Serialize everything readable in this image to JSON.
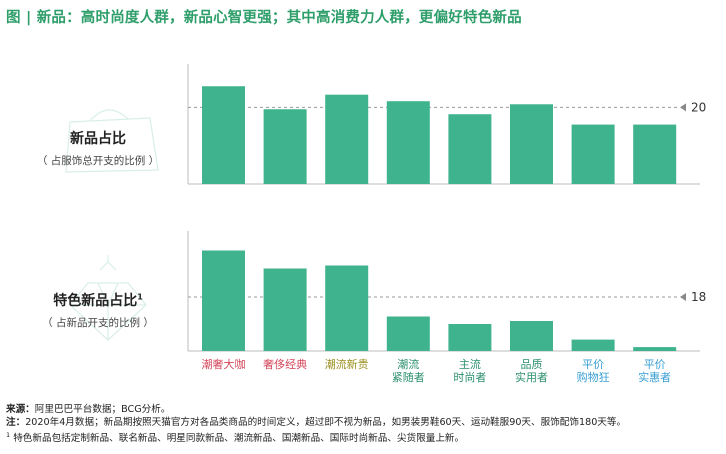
{
  "title": "图 | 新品：高时尚度人群，新品心智更强；其中高消费力人群，更偏好特色新品",
  "panel_top": {
    "label": "新品占比",
    "sublabel": "（ 占服饰总开支的比例 ）",
    "ref_value": "20"
  },
  "panel_bottom": {
    "label": "特色新品占比",
    "label_sup": "1",
    "sublabel": "（ 占新品开支的比例 ）",
    "ref_value": "18"
  },
  "colors": {
    "title": "#2e9e6a",
    "bar": "#3fb38e",
    "bar_dark": "#2b8f6c",
    "cat_red": "#d4465a",
    "cat_olive": "#9a8f1e",
    "cat_blue": "#3a9fd4"
  },
  "footer": {
    "source_label": "来源：",
    "source": "阿里巴巴平台数据；BCG分析。",
    "note_label": "注：",
    "note": "2020年4月数据；新品期按照天猫官方对各品类商品的时间定义，超过即不视为新品，如男装男鞋60天、运动鞋服90天、服饰配饰180天等。",
    "footnote_sup": "1",
    "footnote": "特色新品包括定制新品、联名新品、明星同款新品、潮流新品、国潮新品、国际时尚新品、尖货限量上新。"
  },
  "chart_data": [
    {
      "type": "bar",
      "title": "新品占比",
      "subtitle": "（ 占服饰总开支的比例 ）",
      "categories": [
        "潮奢大咖",
        "奢侈经典",
        "潮流新贵",
        "潮流紧随者",
        "主流时尚者",
        "品质实用者",
        "平价购物狂",
        "平价实惠者"
      ],
      "values": [
        25.5,
        19.5,
        23.3,
        21.6,
        18.2,
        20.8,
        15.5,
        15.5
      ],
      "reference_line": 20,
      "ylim": [
        0,
        30
      ]
    },
    {
      "type": "bar",
      "title": "特色新品占比",
      "subtitle": "（ 占新品开支的比例 ）",
      "categories": [
        "潮奢大咖",
        "奢侈经典",
        "潮流新贵",
        "潮流紧随者",
        "主流时尚者",
        "品质实用者",
        "平价购物狂",
        "平价实惠者"
      ],
      "values": [
        33.5,
        27.5,
        28.5,
        11.5,
        9.0,
        10.0,
        3.8,
        1.3
      ],
      "reference_line": 18,
      "ylim": [
        0,
        40
      ]
    }
  ],
  "category_labels": [
    {
      "lines": [
        "潮奢大咖"
      ],
      "color_key": "cat_red"
    },
    {
      "lines": [
        "奢侈经典"
      ],
      "color_key": "cat_red"
    },
    {
      "lines": [
        "潮流新贵"
      ],
      "color_key": "cat_olive"
    },
    {
      "lines": [
        "潮流",
        "紧随者"
      ],
      "color_key": "bar_dark"
    },
    {
      "lines": [
        "主流",
        "时尚者"
      ],
      "color_key": "bar_dark"
    },
    {
      "lines": [
        "品质",
        "实用者"
      ],
      "color_key": "bar_dark"
    },
    {
      "lines": [
        "平价",
        "购物狂"
      ],
      "color_key": "cat_blue"
    },
    {
      "lines": [
        "平价",
        "实惠者"
      ],
      "color_key": "cat_blue"
    }
  ]
}
